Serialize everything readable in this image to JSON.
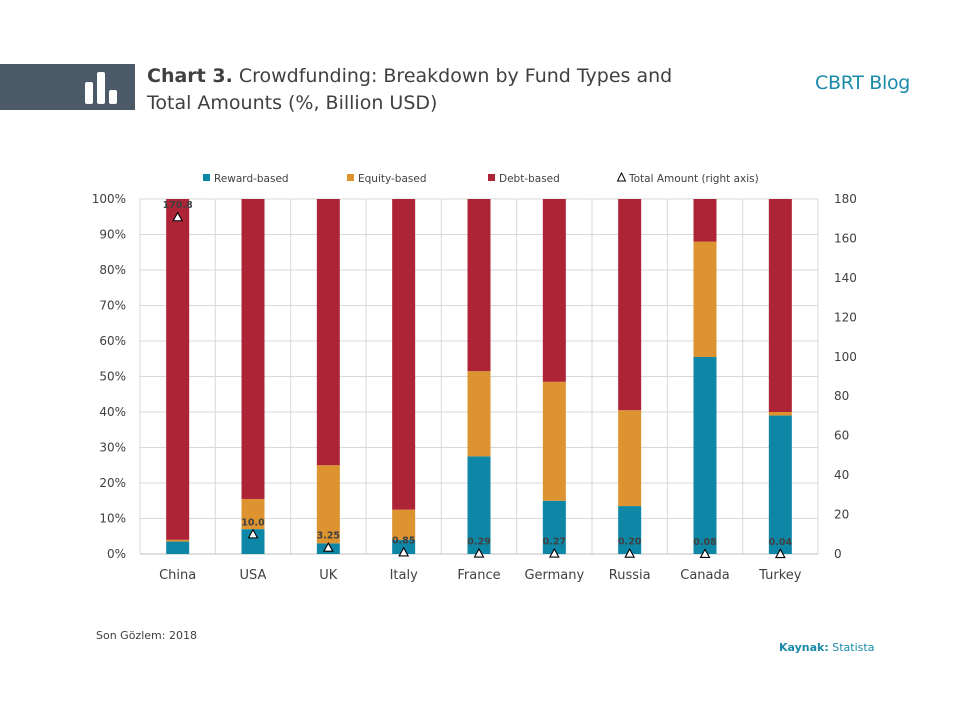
{
  "header": {
    "chart_number": "Chart 3.",
    "title_line1": "Crowdfunding: Breakdown by Fund Types and",
    "title_line2": "Total Amounts (%, Billion USD)",
    "brand": "CBRT Blog",
    "icon": "bar-chart-icon"
  },
  "footer": {
    "note": "Son Gözlem: 2018",
    "source_label": "Kaynak:",
    "source_value": "Statista"
  },
  "colors": {
    "reward": "#0e87a7",
    "equity": "#dd9330",
    "debt": "#ad2437",
    "header_band": "#4c5a67",
    "brand": "#1a8aa8"
  },
  "chart_data": {
    "type": "bar",
    "stacked": true,
    "percent_stacked": true,
    "categories": [
      "China",
      "USA",
      "UK",
      "Italy",
      "France",
      "Germany",
      "Russia",
      "Canada",
      "Turkey"
    ],
    "series": [
      {
        "name": "Reward-based",
        "values": [
          3.5,
          7,
          3,
          4,
          27.5,
          15,
          13.5,
          55.5,
          39
        ]
      },
      {
        "name": "Equity-based",
        "values": [
          0.5,
          8.5,
          22,
          8.5,
          24,
          33.5,
          27,
          32.5,
          1
        ]
      },
      {
        "name": "Debt-based",
        "values": [
          96,
          84.5,
          75,
          87.5,
          48.5,
          51.5,
          59.5,
          12,
          60
        ]
      }
    ],
    "line_series": {
      "name": "Total Amount (right axis)",
      "marker": "triangle",
      "values": [
        170.8,
        10.0,
        3.25,
        0.85,
        0.29,
        0.27,
        0.2,
        0.08,
        0.04
      ],
      "labels": [
        "170.8",
        "10.0",
        "3.25",
        "0.85",
        "0.29",
        "0.27",
        "0.20",
        "0.08",
        "0.04"
      ]
    },
    "legend_order": [
      "Reward-based",
      "Equity-based",
      "Debt-based",
      "Total Amount (right axis)"
    ],
    "legend_position": "top",
    "ylim": [
      0,
      100
    ],
    "y_ticks": [
      "0%",
      "10%",
      "20%",
      "30%",
      "40%",
      "50%",
      "60%",
      "70%",
      "80%",
      "90%",
      "100%"
    ],
    "y2lim": [
      0,
      180
    ],
    "y2_ticks": [
      "0",
      "20",
      "40",
      "60",
      "80",
      "100",
      "120",
      "140",
      "160",
      "180"
    ],
    "grid": true
  }
}
